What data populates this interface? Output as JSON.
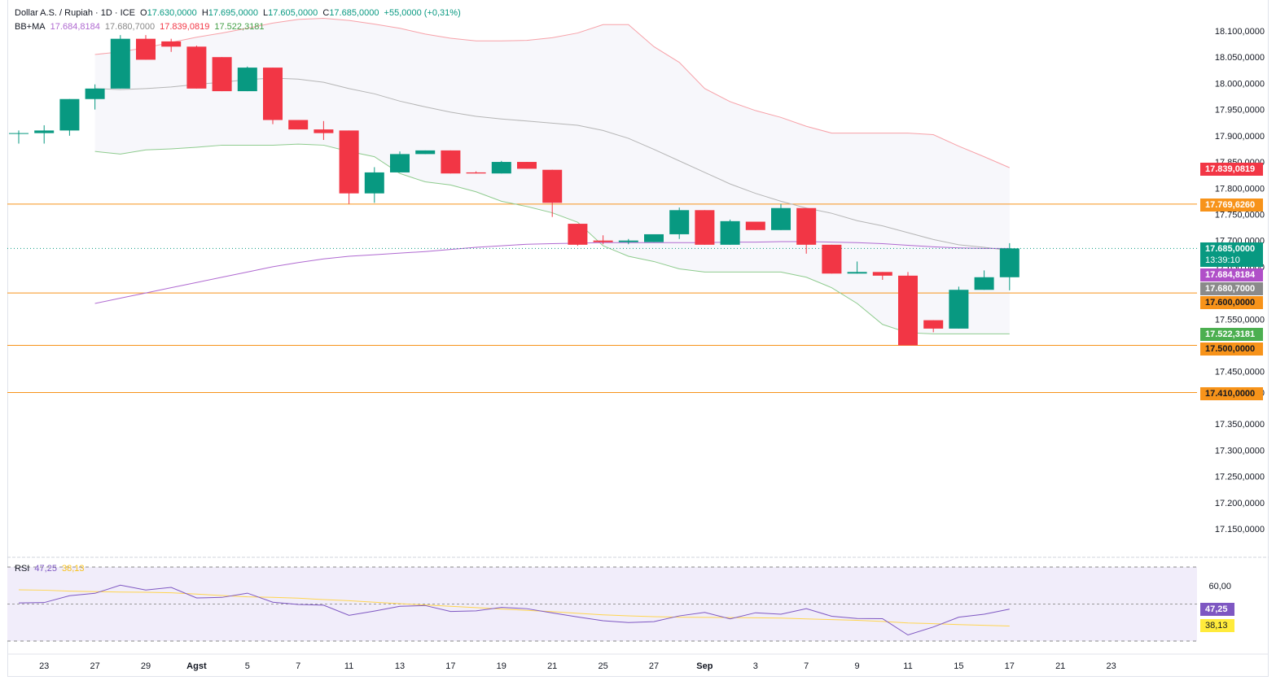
{
  "header": {
    "symbol": "Dollar A.S. / Rupiah · 1D · ICE",
    "o_label": "O",
    "o_value": "17.630,0000",
    "h_label": "H",
    "h_value": "17.695,0000",
    "l_label": "L",
    "l_value": "17.605,0000",
    "c_label": "C",
    "c_value": "17.685,0000",
    "change": "+55,0000 (+0,31%)",
    "bb_label": "BB+MA",
    "bb_ma": "17.684,8184",
    "bb_basis": "17.680,7000",
    "bb_upper": "17.839,0819",
    "bb_lower": "17.522,3181",
    "rsi_label": "RSI",
    "rsi_value": "47,25",
    "rsi_ma": "38,13"
  },
  "tags": {
    "upper": "17.839,0819",
    "res1": "17.769,6260",
    "price": "17.685,0000",
    "countdown": "13:39:10",
    "ma": "17.684,8184",
    "basis": "17.680,7000",
    "sup1": "17.600,0000",
    "lower": "17.522,3181",
    "sup2": "17.500,0000",
    "sup3": "17.410,0000",
    "rsi": "47,25",
    "rsi_ma": "38,13"
  },
  "colors": {
    "up": "#089981",
    "down": "#f23645",
    "upper_band": "#f7a1a8",
    "lower_band": "#8ecb8e",
    "basis": "#b5b5b5",
    "ma": "#b06ad1",
    "hline": "#f7931a",
    "rsi": "#7e57c2",
    "rsi_ma": "#ffd54f"
  },
  "chart_data": {
    "type": "candlestick",
    "y_ticks": [
      "18.100,0000",
      "18.050,0000",
      "18.000,0000",
      "17.950,0000",
      "17.900,0000",
      "17.850,0000",
      "17.800,0000",
      "17.750,0000",
      "17.700,0000",
      "17.650,0000",
      "17.550,0000",
      "17.450,0000",
      "17.410,0000",
      "17.350,0000",
      "17.300,0000",
      "17.250,0000",
      "17.200,0000",
      "17.150,0000"
    ],
    "y_tick_values": [
      18100,
      18050,
      18000,
      17950,
      17900,
      17850,
      17800,
      17750,
      17700,
      17650,
      17550,
      17450,
      17410,
      17350,
      17300,
      17250,
      17200,
      17150
    ],
    "ylim": [
      17110,
      18140
    ],
    "x_ticks": [
      {
        "label": "23",
        "i": 1
      },
      {
        "label": "27",
        "i": 3
      },
      {
        "label": "29",
        "i": 5
      },
      {
        "label": "Agst",
        "i": 7
      },
      {
        "label": "5",
        "i": 9
      },
      {
        "label": "7",
        "i": 11
      },
      {
        "label": "11",
        "i": 13
      },
      {
        "label": "13",
        "i": 15
      },
      {
        "label": "17",
        "i": 17
      },
      {
        "label": "19",
        "i": 19
      },
      {
        "label": "21",
        "i": 21
      },
      {
        "label": "25",
        "i": 23
      },
      {
        "label": "27",
        "i": 25
      },
      {
        "label": "Sep",
        "i": 27
      },
      {
        "label": "3",
        "i": 29
      },
      {
        "label": "7",
        "i": 31
      },
      {
        "label": "9",
        "i": 33
      },
      {
        "label": "11",
        "i": 35
      },
      {
        "label": "15",
        "i": 37
      },
      {
        "label": "17",
        "i": 39
      },
      {
        "label": "21",
        "i": 41
      },
      {
        "label": "23",
        "i": 43
      }
    ],
    "candles": [
      {
        "o": 17905,
        "h": 17910,
        "l": 17885,
        "c": 17905
      },
      {
        "o": 17905,
        "h": 17920,
        "l": 17885,
        "c": 17910
      },
      {
        "o": 17910,
        "h": 17970,
        "l": 17900,
        "c": 17970
      },
      {
        "o": 17970,
        "h": 17998,
        "l": 17950,
        "c": 17990
      },
      {
        "o": 17990,
        "h": 18092,
        "l": 17990,
        "c": 18085
      },
      {
        "o": 18085,
        "h": 18092,
        "l": 18045,
        "c": 18045
      },
      {
        "o": 18080,
        "h": 18085,
        "l": 18060,
        "c": 18070
      },
      {
        "o": 18070,
        "h": 18072,
        "l": 17990,
        "c": 17990
      },
      {
        "o": 18050,
        "h": 18050,
        "l": 17985,
        "c": 17985
      },
      {
        "o": 17985,
        "h": 18032,
        "l": 17985,
        "c": 18030
      },
      {
        "o": 18030,
        "h": 18030,
        "l": 17922,
        "c": 17930
      },
      {
        "o": 17930,
        "h": 17930,
        "l": 17912,
        "c": 17912
      },
      {
        "o": 17912,
        "h": 17928,
        "l": 17892,
        "c": 17905
      },
      {
        "o": 17910,
        "h": 17910,
        "l": 17770,
        "c": 17790
      },
      {
        "o": 17790,
        "h": 17840,
        "l": 17772,
        "c": 17830
      },
      {
        "o": 17830,
        "h": 17870,
        "l": 17830,
        "c": 17865
      },
      {
        "o": 17865,
        "h": 17872,
        "l": 17865,
        "c": 17872
      },
      {
        "o": 17872,
        "h": 17872,
        "l": 17828,
        "c": 17828
      },
      {
        "o": 17830,
        "h": 17832,
        "l": 17828,
        "c": 17828
      },
      {
        "o": 17828,
        "h": 17852,
        "l": 17828,
        "c": 17850
      },
      {
        "o": 17850,
        "h": 17850,
        "l": 17837,
        "c": 17837
      },
      {
        "o": 17835,
        "h": 17835,
        "l": 17745,
        "c": 17772
      },
      {
        "o": 17732,
        "h": 17732,
        "l": 17690,
        "c": 17692
      },
      {
        "o": 17700,
        "h": 17710,
        "l": 17693,
        "c": 17697
      },
      {
        "o": 17697,
        "h": 17703,
        "l": 17693,
        "c": 17700
      },
      {
        "o": 17697,
        "h": 17712,
        "l": 17697,
        "c": 17712
      },
      {
        "o": 17712,
        "h": 17763,
        "l": 17703,
        "c": 17758
      },
      {
        "o": 17758,
        "h": 17758,
        "l": 17692,
        "c": 17692
      },
      {
        "o": 17692,
        "h": 17740,
        "l": 17692,
        "c": 17737
      },
      {
        "o": 17736,
        "h": 17736,
        "l": 17720,
        "c": 17720
      },
      {
        "o": 17720,
        "h": 17770,
        "l": 17720,
        "c": 17762
      },
      {
        "o": 17762,
        "h": 17762,
        "l": 17675,
        "c": 17692
      },
      {
        "o": 17692,
        "h": 17692,
        "l": 17637,
        "c": 17637
      },
      {
        "o": 17637,
        "h": 17660,
        "l": 17637,
        "c": 17640
      },
      {
        "o": 17640,
        "h": 17640,
        "l": 17625,
        "c": 17633
      },
      {
        "o": 17633,
        "h": 17640,
        "l": 17500,
        "c": 17500
      },
      {
        "o": 17548,
        "h": 17548,
        "l": 17525,
        "c": 17532
      },
      {
        "o": 17532,
        "h": 17612,
        "l": 17532,
        "c": 17606
      },
      {
        "o": 17606,
        "h": 17643,
        "l": 17606,
        "c": 17630
      },
      {
        "o": 17630,
        "h": 17695,
        "l": 17605,
        "c": 17685
      }
    ],
    "candle_x_positions": [],
    "series": [
      {
        "name": "BB upper",
        "values": [
          18055,
          18060,
          18068,
          18078,
          18088,
          18096,
          18105,
          18115,
          18122,
          18124,
          18120,
          18113,
          18105,
          18094,
          18086,
          18081,
          18081,
          18082,
          18087,
          18096,
          18112,
          18112,
          18070,
          18040,
          17990,
          17965,
          17948,
          17935,
          17918,
          17905,
          17905,
          17905,
          17905,
          17902,
          17880,
          17860,
          17839
        ]
      },
      {
        "name": "BB basis",
        "values": [
          17990,
          17988,
          17990,
          17993,
          17998,
          18002,
          18007,
          18010,
          18008,
          18002,
          17990,
          17980,
          17966,
          17955,
          17945,
          17937,
          17932,
          17928,
          17924,
          17920,
          17910,
          17895,
          17874,
          17852,
          17830,
          17808,
          17790,
          17775,
          17762,
          17752,
          17738,
          17728,
          17715,
          17702,
          17692,
          17687,
          17681
        ]
      },
      {
        "name": "BB lower",
        "values": [
          17870,
          17865,
          17873,
          17875,
          17878,
          17882,
          17882,
          17882,
          17884,
          17882,
          17870,
          17860,
          17828,
          17812,
          17806,
          17793,
          17775,
          17765,
          17753,
          17735,
          17690,
          17670,
          17660,
          17646,
          17640,
          17640,
          17640,
          17640,
          17630,
          17610,
          17580,
          17540,
          17524,
          17522,
          17522,
          17522,
          17522
        ]
      },
      {
        "name": "MA",
        "values": [
          17580,
          17590,
          17600,
          17610,
          17620,
          17630,
          17640,
          17650,
          17658,
          17665,
          17670,
          17673,
          17676,
          17679,
          17683,
          17687,
          17690,
          17693,
          17694,
          17695,
          17696,
          17696,
          17696,
          17696,
          17696,
          17697,
          17697,
          17698,
          17698,
          17697,
          17696,
          17694,
          17691,
          17688,
          17686,
          17685,
          17685
        ]
      },
      {
        "name": "RSI",
        "values": [
          50.6,
          50.8,
          54.5,
          55.8,
          60.2,
          57.6,
          59.0,
          53.3,
          53.6,
          55.9,
          51.0,
          49.8,
          49.4,
          43.9,
          46.2,
          48.8,
          49.2,
          46.0,
          46.3,
          48.2,
          47.5,
          45.2,
          43.0,
          41.0,
          40.0,
          40.5,
          43.6,
          45.5,
          42.0,
          45.3,
          44.5,
          47.5,
          43.4,
          42.2,
          42.1,
          33.3,
          37.6,
          42.9,
          44.5,
          47.25
        ]
      },
      {
        "name": "RSI MA",
        "values": [
          57.7,
          57.5,
          57.0,
          56.7,
          56.5,
          56.4,
          56.1,
          55.4,
          54.6,
          53.9,
          53.6,
          53.2,
          52.4,
          51.8,
          51.0,
          50.2,
          49.5,
          48.8,
          48.1,
          47.3,
          46.6,
          45.9,
          45.0,
          44.2,
          43.6,
          43.2,
          42.9,
          42.8,
          42.7,
          42.6,
          42.4,
          42.0,
          41.6,
          41.2,
          40.6,
          39.8,
          39.4,
          38.9,
          38.5,
          38.13
        ]
      }
    ],
    "horizontal_lines": [
      17769.626,
      17600,
      17500,
      17410
    ],
    "rsi_bands": [
      70,
      30
    ],
    "rsi_ticks": [
      "60,00"
    ],
    "rsi_tick_values": [
      60
    ],
    "rsi_ylim": [
      25,
      75
    ]
  }
}
